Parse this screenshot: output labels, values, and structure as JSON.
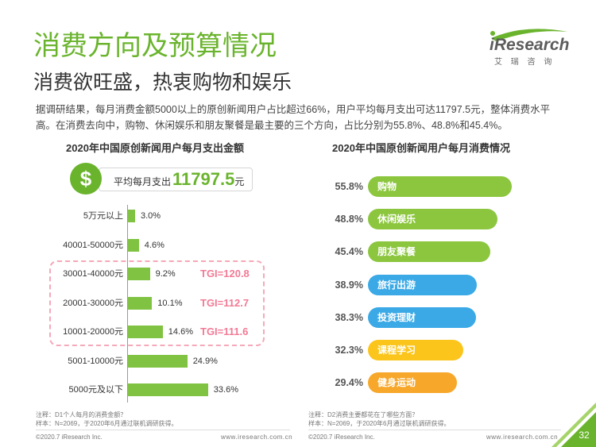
{
  "header": {
    "title": "消费方向及预算情况",
    "subtitle": "消费欲旺盛，热衷购物和娱乐"
  },
  "logo": {
    "brand": "iResearch",
    "brand_cn": "艾 瑞 咨 询"
  },
  "intro": "据调研结果，每月消费金额5000以上的原创新闻用户占比超过66%，用户平均每月支出可达11797.5元，整体消费水平高。在消费去向中，购物、休闲娱乐和朋友聚餐是最主要的三个方向，占比分别为55.8%、48.8%和45.4%。",
  "spending": {
    "currency_icon": "$",
    "avg_label": "平均每月支出",
    "avg_value": "11797.5",
    "avg_unit": "元",
    "note": "注释：D1个人每月的消费金额？",
    "sample": "样本：N=2069，于2020年6月通过联机调研获得。"
  },
  "consumption": {
    "note": "注释：D2消费主要都花在了哪些方面？",
    "sample": "样本：N=2069，于2020年6月通过联机调研获得。"
  },
  "footer": {
    "copyright": "©2020.7 iResearch Inc.",
    "website": "www.iresearch.com.cn",
    "page_number": "32"
  },
  "colors": {
    "brand_green": "#6ab42d",
    "bar_green": "#80c342",
    "tgi_pink": "#f27a95",
    "highlight_pink": "#f5a8b8",
    "text_dark": "#333333"
  },
  "chart_data": [
    {
      "type": "bar",
      "orientation": "horizontal",
      "title": "2020年中国原创新闻用户每月支出金额",
      "categories": [
        "5万元以上",
        "40001-50000元",
        "30001-40000元",
        "20001-30000元",
        "10001-20000元",
        "5001-10000元",
        "5000元及以下"
      ],
      "values": [
        3.0,
        4.6,
        9.2,
        10.1,
        14.6,
        24.9,
        33.6
      ],
      "unit": "%",
      "color": "#80c342",
      "annotations": [
        {
          "category": "30001-40000元",
          "text": "TGI=120.8"
        },
        {
          "category": "20001-30000元",
          "text": "TGI=112.7"
        },
        {
          "category": "10001-20000元",
          "text": "TGI=111.6"
        }
      ]
    },
    {
      "type": "bar",
      "orientation": "horizontal",
      "title": "2020年中国原创新闻用户每月消费情况",
      "categories": [
        "购物",
        "休闲娱乐",
        "朋友聚餐",
        "旅行出游",
        "投资理财",
        "课程学习",
        "健身运动"
      ],
      "values": [
        55.8,
        48.8,
        45.4,
        38.9,
        38.3,
        32.3,
        29.4
      ],
      "unit": "%",
      "colors": [
        "#8cc63f",
        "#8cc63f",
        "#8cc63f",
        "#3aa9e6",
        "#3aa9e6",
        "#fbc51b",
        "#f7a72a"
      ]
    }
  ]
}
